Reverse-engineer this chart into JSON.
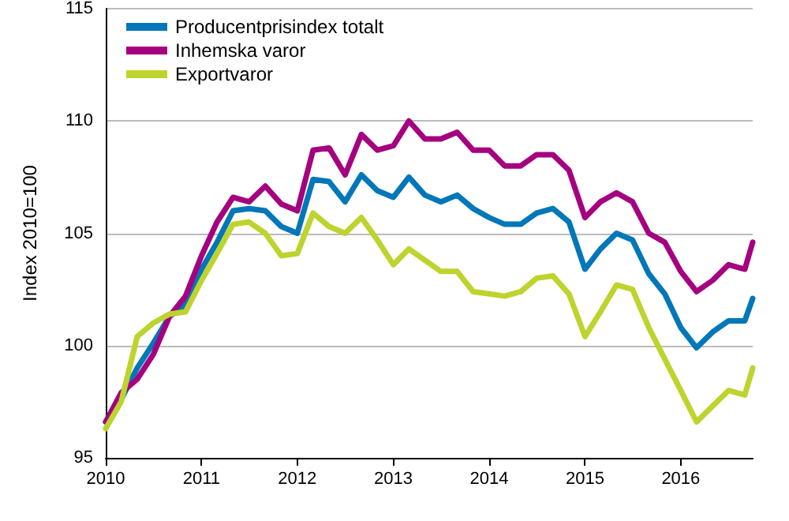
{
  "chart_data": {
    "type": "line",
    "ylabel": "Index 2010=100",
    "x": [
      "2010-01",
      "2010-03",
      "2010-05",
      "2010-07",
      "2010-09",
      "2010-11",
      "2011-01",
      "2011-03",
      "2011-05",
      "2011-07",
      "2011-09",
      "2011-11",
      "2012-01",
      "2012-03",
      "2012-05",
      "2012-07",
      "2012-09",
      "2012-11",
      "2013-01",
      "2013-03",
      "2013-05",
      "2013-07",
      "2013-09",
      "2013-11",
      "2014-01",
      "2014-03",
      "2014-05",
      "2014-07",
      "2014-09",
      "2014-11",
      "2015-01",
      "2015-03",
      "2015-05",
      "2015-07",
      "2015-09",
      "2015-11",
      "2016-01",
      "2016-03",
      "2016-05",
      "2016-07",
      "2016-09",
      "2016-10"
    ],
    "series": [
      {
        "name": "Producentprisindex totalt",
        "color": "#0077b8",
        "values": [
          96.6,
          97.6,
          99.0,
          100.1,
          101.3,
          101.8,
          103.4,
          104.6,
          106.0,
          106.1,
          106.0,
          105.3,
          105.0,
          107.4,
          107.3,
          106.4,
          107.6,
          106.9,
          106.6,
          107.5,
          106.7,
          106.4,
          106.7,
          106.1,
          105.7,
          105.4,
          105.4,
          105.9,
          106.1,
          105.5,
          103.4,
          104.3,
          105.0,
          104.7,
          103.2,
          102.3,
          100.8,
          99.9,
          100.6,
          101.1,
          101.1,
          102.1
        ]
      },
      {
        "name": "Inhemska varor",
        "color": "#a5007f",
        "values": [
          96.6,
          97.9,
          98.5,
          99.6,
          101.3,
          102.2,
          104.0,
          105.5,
          106.6,
          106.4,
          107.1,
          106.3,
          106.0,
          108.7,
          108.8,
          107.6,
          109.4,
          108.7,
          108.9,
          110.0,
          109.2,
          109.2,
          109.5,
          108.7,
          108.7,
          108.0,
          108.0,
          108.5,
          108.5,
          107.8,
          105.7,
          106.4,
          106.8,
          106.4,
          105.0,
          104.6,
          103.3,
          102.4,
          102.9,
          103.6,
          103.4,
          104.6
        ]
      },
      {
        "name": "Exportvaror",
        "color": "#bed32d",
        "values": [
          96.3,
          97.5,
          100.4,
          101.0,
          101.4,
          101.5,
          102.9,
          104.1,
          105.4,
          105.5,
          105.0,
          104.0,
          104.1,
          105.9,
          105.3,
          105.0,
          105.7,
          104.7,
          103.6,
          104.3,
          103.8,
          103.3,
          103.3,
          102.4,
          102.3,
          102.2,
          102.4,
          103.0,
          103.1,
          102.3,
          100.4,
          101.5,
          102.7,
          102.5,
          100.8,
          99.4,
          98.0,
          96.6,
          97.3,
          98.0,
          97.8,
          99.0
        ]
      }
    ],
    "xlim": [
      "2010",
      "2016-10"
    ],
    "xticks": [
      "2010",
      "2011",
      "2012",
      "2013",
      "2014",
      "2015",
      "2016"
    ],
    "ylim": [
      95,
      115
    ],
    "yticks": [
      95,
      100,
      105,
      110,
      115
    ],
    "grid": "y",
    "legend": "top left",
    "marker": "none",
    "line_style": "solid"
  }
}
